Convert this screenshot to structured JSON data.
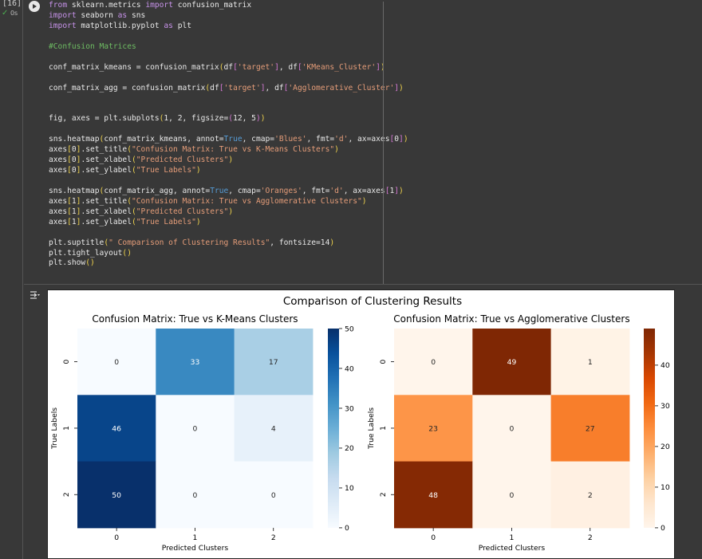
{
  "cell": {
    "execution_count": "[16]",
    "status_check": "✓",
    "duration": "0s",
    "run_icon": "play-circle-icon",
    "output_icon": "output-toggle-icon"
  },
  "code_lines": [
    [
      {
        "t": "from",
        "c": "kw"
      },
      {
        "t": " sklearn.metrics "
      },
      {
        "t": "import",
        "c": "kw"
      },
      {
        "t": " confusion_matrix"
      }
    ],
    [
      {
        "t": "import",
        "c": "kw"
      },
      {
        "t": " seaborn "
      },
      {
        "t": "as",
        "c": "kw"
      },
      {
        "t": " sns"
      }
    ],
    [
      {
        "t": "import",
        "c": "kw"
      },
      {
        "t": " matplotlib.pyplot "
      },
      {
        "t": "as",
        "c": "kw"
      },
      {
        "t": " plt"
      }
    ],
    [],
    [
      {
        "t": "#Confusion Matrices",
        "c": "cm"
      }
    ],
    [],
    [
      {
        "t": "conf_matrix_kmeans = confusion_matrix"
      },
      {
        "t": "(",
        "c": "br1"
      },
      {
        "t": "df"
      },
      {
        "t": "[",
        "c": "br2"
      },
      {
        "t": "'target'",
        "c": "st"
      },
      {
        "t": "]",
        "c": "br2"
      },
      {
        "t": ", df"
      },
      {
        "t": "[",
        "c": "br2"
      },
      {
        "t": "'KMeans_Cluster'",
        "c": "st"
      },
      {
        "t": "]",
        "c": "br2"
      },
      {
        "t": ")",
        "c": "br1"
      }
    ],
    [],
    [
      {
        "t": "conf_matrix_agg = confusion_matrix"
      },
      {
        "t": "(",
        "c": "br1"
      },
      {
        "t": "df"
      },
      {
        "t": "[",
        "c": "br2"
      },
      {
        "t": "'target'",
        "c": "st"
      },
      {
        "t": "]",
        "c": "br2"
      },
      {
        "t": ", df"
      },
      {
        "t": "[",
        "c": "br2"
      },
      {
        "t": "'Agglomerative_Cluster'",
        "c": "st"
      },
      {
        "t": "]",
        "c": "br2"
      },
      {
        "t": ")",
        "c": "br1"
      }
    ],
    [],
    [],
    [
      {
        "t": "fig, axes = plt.subplots"
      },
      {
        "t": "(",
        "c": "br1"
      },
      {
        "t": "1, 2, figsize="
      },
      {
        "t": "(",
        "c": "br2"
      },
      {
        "t": "12, 5"
      },
      {
        "t": ")",
        "c": "br2"
      },
      {
        "t": ")",
        "c": "br1"
      }
    ],
    [],
    [
      {
        "t": "sns.heatmap"
      },
      {
        "t": "(",
        "c": "br1"
      },
      {
        "t": "conf_matrix_kmeans, annot="
      },
      {
        "t": "True",
        "c": "bl"
      },
      {
        "t": ", cmap="
      },
      {
        "t": "'Blues'",
        "c": "st"
      },
      {
        "t": ", fmt="
      },
      {
        "t": "'d'",
        "c": "st"
      },
      {
        "t": ", ax=axes"
      },
      {
        "t": "[",
        "c": "br2"
      },
      {
        "t": "0"
      },
      {
        "t": "]",
        "c": "br2"
      },
      {
        "t": ")",
        "c": "br1"
      }
    ],
    [
      {
        "t": "axes"
      },
      {
        "t": "[",
        "c": "br1"
      },
      {
        "t": "0"
      },
      {
        "t": "]",
        "c": "br1"
      },
      {
        "t": ".set_title"
      },
      {
        "t": "(",
        "c": "br1"
      },
      {
        "t": "\"Confusion Matrix: True vs K-Means Clusters\"",
        "c": "st"
      },
      {
        "t": ")",
        "c": "br1"
      }
    ],
    [
      {
        "t": "axes"
      },
      {
        "t": "[",
        "c": "br1"
      },
      {
        "t": "0"
      },
      {
        "t": "]",
        "c": "br1"
      },
      {
        "t": ".set_xlabel"
      },
      {
        "t": "(",
        "c": "br1"
      },
      {
        "t": "\"Predicted Clusters\"",
        "c": "st"
      },
      {
        "t": ")",
        "c": "br1"
      }
    ],
    [
      {
        "t": "axes"
      },
      {
        "t": "[",
        "c": "br1"
      },
      {
        "t": "0"
      },
      {
        "t": "]",
        "c": "br1"
      },
      {
        "t": ".set_ylabel"
      },
      {
        "t": "(",
        "c": "br1"
      },
      {
        "t": "\"True Labels\"",
        "c": "st"
      },
      {
        "t": ")",
        "c": "br1"
      }
    ],
    [],
    [
      {
        "t": "sns.heatmap"
      },
      {
        "t": "(",
        "c": "br1"
      },
      {
        "t": "conf_matrix_agg, annot="
      },
      {
        "t": "True",
        "c": "bl"
      },
      {
        "t": ", cmap="
      },
      {
        "t": "'Oranges'",
        "c": "st"
      },
      {
        "t": ", fmt="
      },
      {
        "t": "'d'",
        "c": "st"
      },
      {
        "t": ", ax=axes"
      },
      {
        "t": "[",
        "c": "br2"
      },
      {
        "t": "1"
      },
      {
        "t": "]",
        "c": "br2"
      },
      {
        "t": ")",
        "c": "br1"
      }
    ],
    [
      {
        "t": "axes"
      },
      {
        "t": "[",
        "c": "br1"
      },
      {
        "t": "1"
      },
      {
        "t": "]",
        "c": "br1"
      },
      {
        "t": ".set_title"
      },
      {
        "t": "(",
        "c": "br1"
      },
      {
        "t": "\"Confusion Matrix: True vs Agglomerative Clusters\"",
        "c": "st"
      },
      {
        "t": ")",
        "c": "br1"
      }
    ],
    [
      {
        "t": "axes"
      },
      {
        "t": "[",
        "c": "br1"
      },
      {
        "t": "1"
      },
      {
        "t": "]",
        "c": "br1"
      },
      {
        "t": ".set_xlabel"
      },
      {
        "t": "(",
        "c": "br1"
      },
      {
        "t": "\"Predicted Clusters\"",
        "c": "st"
      },
      {
        "t": ")",
        "c": "br1"
      }
    ],
    [
      {
        "t": "axes"
      },
      {
        "t": "[",
        "c": "br1"
      },
      {
        "t": "1"
      },
      {
        "t": "]",
        "c": "br1"
      },
      {
        "t": ".set_ylabel"
      },
      {
        "t": "(",
        "c": "br1"
      },
      {
        "t": "\"True Labels\"",
        "c": "st"
      },
      {
        "t": ")",
        "c": "br1"
      }
    ],
    [],
    [
      {
        "t": "plt.suptitle"
      },
      {
        "t": "(",
        "c": "br1"
      },
      {
        "t": "\" Comparison of Clustering Results\"",
        "c": "st"
      },
      {
        "t": ", fontsize=14"
      },
      {
        "t": ")",
        "c": "br1"
      }
    ],
    [
      {
        "t": "plt.tight_layout"
      },
      {
        "t": "()",
        "c": "br1"
      }
    ],
    [
      {
        "t": "plt.show"
      },
      {
        "t": "()",
        "c": "br1"
      }
    ]
  ],
  "figure": {
    "suptitle": "Comparison of Clustering Results"
  },
  "chart_data": [
    {
      "type": "heatmap",
      "title": "Confusion Matrix: True vs K-Means Clusters",
      "xlabel": "Predicted Clusters",
      "ylabel": "True Labels",
      "x_categories": [
        "0",
        "1",
        "2"
      ],
      "y_categories": [
        "0",
        "1",
        "2"
      ],
      "values": [
        [
          0,
          33,
          17
        ],
        [
          46,
          0,
          4
        ],
        [
          50,
          0,
          0
        ]
      ],
      "colormap": "Blues",
      "vmin": 0,
      "vmax": 50,
      "colorbar_ticks": [
        "0",
        "10",
        "20",
        "30",
        "40",
        "50"
      ],
      "colorbar_tick_values": [
        0,
        10,
        20,
        30,
        40,
        50
      ]
    },
    {
      "type": "heatmap",
      "title": "Confusion Matrix: True vs Agglomerative Clusters",
      "xlabel": "Predicted Clusters",
      "ylabel": "True Labels",
      "x_categories": [
        "0",
        "1",
        "2"
      ],
      "y_categories": [
        "0",
        "1",
        "2"
      ],
      "values": [
        [
          0,
          49,
          1
        ],
        [
          23,
          0,
          27
        ],
        [
          48,
          0,
          2
        ]
      ],
      "colormap": "Oranges",
      "vmin": 0,
      "vmax": 49,
      "colorbar_ticks": [
        "0",
        "10",
        "20",
        "30",
        "40"
      ],
      "colorbar_tick_values": [
        0,
        10,
        20,
        30,
        40
      ]
    }
  ],
  "colors": {
    "blues": [
      "#f7fbff",
      "#deebf7",
      "#c6dbef",
      "#9ecae1",
      "#6baed6",
      "#4292c6",
      "#2171b5",
      "#08519c",
      "#08306b"
    ],
    "oranges": [
      "#fff5eb",
      "#fee6ce",
      "#fdd0a2",
      "#fdae6b",
      "#fd8d3c",
      "#f16913",
      "#d94801",
      "#a63603",
      "#7f2704"
    ]
  }
}
